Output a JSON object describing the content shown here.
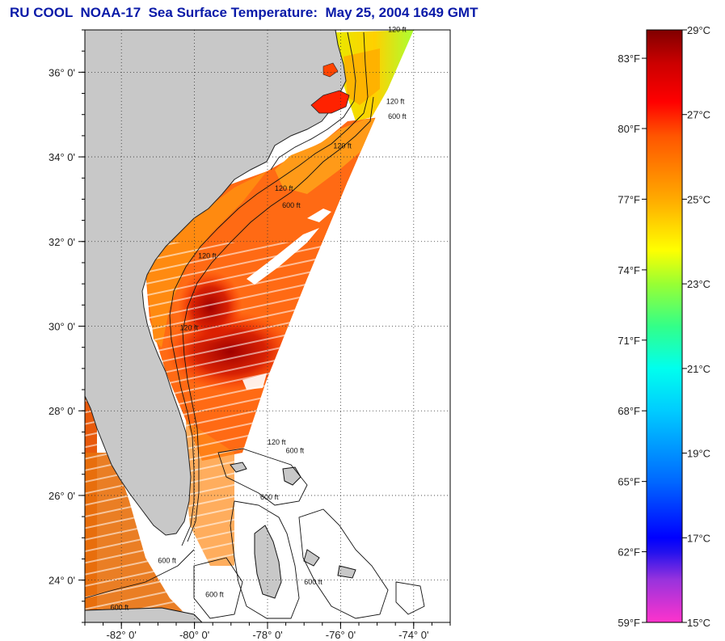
{
  "title": "RU COOL  NOAA-17  Sea Surface Temperature:  May 25, 2004 1649 GMT",
  "map": {
    "lat_range": [
      23.0,
      37.0
    ],
    "lon_range": [
      -83.0,
      -73.0
    ],
    "lat_ticks": [
      {
        "value": 24,
        "label": "24° 0'"
      },
      {
        "value": 26,
        "label": "26° 0'"
      },
      {
        "value": 28,
        "label": "28° 0'"
      },
      {
        "value": 30,
        "label": "30° 0'"
      },
      {
        "value": 32,
        "label": "32° 0'"
      },
      {
        "value": 34,
        "label": "34° 0'"
      },
      {
        "value": 36,
        "label": "36° 0'"
      }
    ],
    "lon_ticks": [
      {
        "value": -82,
        "label": "-82° 0'"
      },
      {
        "value": -80,
        "label": "-80° 0'"
      },
      {
        "value": -78,
        "label": "-78° 0'"
      },
      {
        "value": -76,
        "label": "-76° 0'"
      },
      {
        "value": -74,
        "label": "-74° 0'"
      }
    ],
    "grid": "dotted",
    "land_color": "#c8c8c8",
    "contour_labels": [
      {
        "text": "120 ft",
        "lon": -74.7,
        "lat": 36.95
      },
      {
        "text": "120 ft",
        "lon": -74.75,
        "lat": 35.25
      },
      {
        "text": "600 ft",
        "lon": -74.7,
        "lat": 34.9
      },
      {
        "text": "120 ft",
        "lon": -76.2,
        "lat": 34.2
      },
      {
        "text": "120 ft",
        "lon": -77.8,
        "lat": 33.2
      },
      {
        "text": "600 ft",
        "lon": -77.6,
        "lat": 32.8
      },
      {
        "text": "120 ft",
        "lon": -79.9,
        "lat": 31.6
      },
      {
        "text": "120 ft",
        "lon": -80.4,
        "lat": 29.9
      },
      {
        "text": "120 ft",
        "lon": -78.0,
        "lat": 27.2
      },
      {
        "text": "600 ft",
        "lon": -77.5,
        "lat": 27.0
      },
      {
        "text": "600 ft",
        "lon": -78.2,
        "lat": 25.9
      },
      {
        "text": "600 ft",
        "lon": -81.0,
        "lat": 24.4
      },
      {
        "text": "600 ft",
        "lon": -79.7,
        "lat": 23.6
      },
      {
        "text": "600 ft",
        "lon": -82.3,
        "lat": 23.3
      },
      {
        "text": "600 ft",
        "lon": -77.0,
        "lat": 23.9
      }
    ]
  },
  "colorbar": {
    "celsius_range": [
      15,
      29
    ],
    "fahrenheit_labels": [
      {
        "label": "83°F",
        "c": 28.33
      },
      {
        "label": "80°F",
        "c": 26.67
      },
      {
        "label": "77°F",
        "c": 25.0
      },
      {
        "label": "74°F",
        "c": 23.33
      },
      {
        "label": "71°F",
        "c": 21.67
      },
      {
        "label": "68°F",
        "c": 20.0
      },
      {
        "label": "65°F",
        "c": 18.33
      },
      {
        "label": "62°F",
        "c": 16.67
      },
      {
        "label": "59°F",
        "c": 15.0
      }
    ],
    "celsius_labels": [
      {
        "label": "29°C",
        "c": 29
      },
      {
        "label": "27°C",
        "c": 27
      },
      {
        "label": "25°C",
        "c": 25
      },
      {
        "label": "23°C",
        "c": 23
      },
      {
        "label": "21°C",
        "c": 21
      },
      {
        "label": "19°C",
        "c": 19
      },
      {
        "label": "17°C",
        "c": 17
      },
      {
        "label": "15°C",
        "c": 15
      }
    ],
    "color_stops": [
      {
        "c": 15.0,
        "color": "#ff33cc"
      },
      {
        "c": 16.0,
        "color": "#9933dd"
      },
      {
        "c": 16.67,
        "color": "#2211ee"
      },
      {
        "c": 17.0,
        "color": "#0000ff"
      },
      {
        "c": 18.3,
        "color": "#0066ff"
      },
      {
        "c": 20.0,
        "color": "#00ccff"
      },
      {
        "c": 21.0,
        "color": "#00ffee"
      },
      {
        "c": 22.0,
        "color": "#33ff88"
      },
      {
        "c": 23.0,
        "color": "#99ff33"
      },
      {
        "c": 23.8,
        "color": "#ffff00"
      },
      {
        "c": 25.0,
        "color": "#ffaa00"
      },
      {
        "c": 26.5,
        "color": "#ff5500"
      },
      {
        "c": 27.3,
        "color": "#ff0000"
      },
      {
        "c": 28.2,
        "color": "#cc0000"
      },
      {
        "c": 29.0,
        "color": "#800000"
      }
    ]
  }
}
